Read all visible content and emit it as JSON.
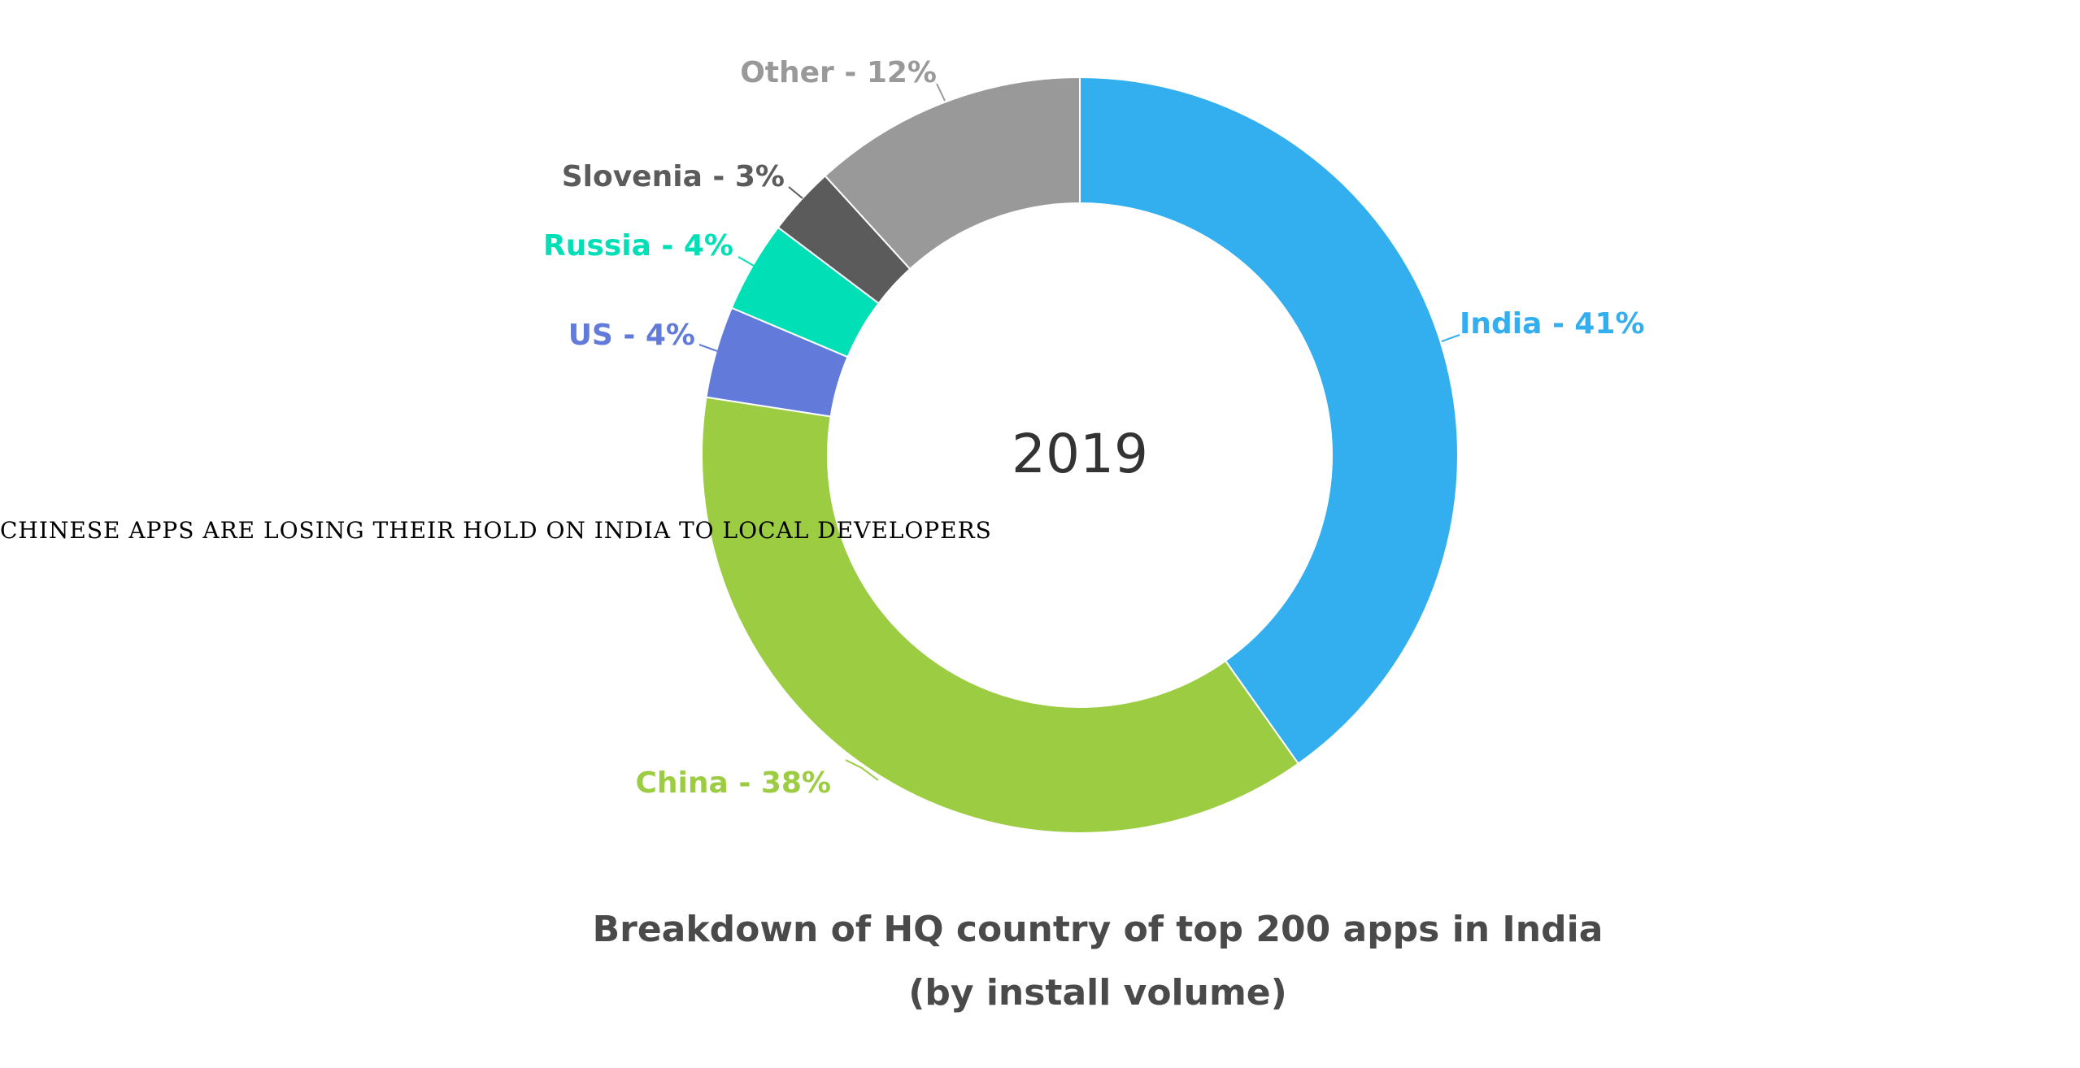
{
  "overlay_title": "CHINESE APPS ARE LOSING THEIR HOLD ON INDIA TO LOCAL DEVELOPERS",
  "center_label": "2019",
  "caption": {
    "line1": "Breakdown of HQ country of top 200 apps in India",
    "line2": "(by install volume)"
  },
  "chart_data": {
    "type": "pie",
    "subtype": "donut",
    "title": "Breakdown of HQ country of top 200 apps in India (by install volume)",
    "center_text": "2019",
    "slices": [
      {
        "name": "India",
        "value": 41,
        "label": "India - 41%",
        "color": "#33afef"
      },
      {
        "name": "China",
        "value": 38,
        "label": "China - 38%",
        "color": "#9ccc42"
      },
      {
        "name": "US",
        "value": 4,
        "label": "US - 4%",
        "color": "#627bdb"
      },
      {
        "name": "Russia",
        "value": 4,
        "label": "Russia - 4%",
        "color": "#00dfb6"
      },
      {
        "name": "Slovenia",
        "value": 3,
        "label": "Slovenia - 3%",
        "color": "#5b5b5b"
      },
      {
        "name": "Other",
        "value": 12,
        "label": "Other - 12%",
        "color": "#999999"
      }
    ],
    "label_colors": {
      "India": "#33afef",
      "China": "#9ccc42",
      "US": "#627bdb",
      "Russia": "#00dfb6",
      "Slovenia": "#5b5b5b",
      "Other": "#999999"
    },
    "legend": "none"
  }
}
